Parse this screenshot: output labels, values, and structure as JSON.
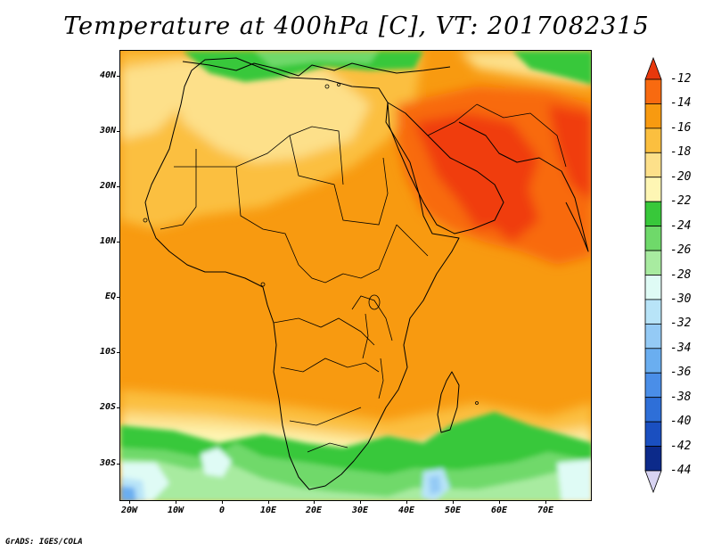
{
  "title": "Temperature at 400hPa [C], VT: 2017082315",
  "footer": "GrADS: IGES/COLA",
  "axes": {
    "lat_labels": [
      "40N",
      "30N",
      "20N",
      "10N",
      "EQ",
      "10S",
      "20S",
      "30S"
    ],
    "lat_values": [
      40,
      30,
      20,
      10,
      0,
      -10,
      -20,
      -30
    ],
    "lon_labels": [
      "20W",
      "10W",
      "0",
      "10E",
      "20E",
      "30E",
      "40E",
      "50E",
      "60E",
      "70E"
    ],
    "lon_values": [
      -20,
      -10,
      0,
      10,
      20,
      30,
      40,
      50,
      60,
      70
    ],
    "lon_range": [
      -22,
      80
    ],
    "lat_range": [
      -37,
      45
    ]
  },
  "colorbar": {
    "labels": [
      "-12",
      "-14",
      "-16",
      "-18",
      "-20",
      "-22",
      "-24",
      "-26",
      "-28",
      "-30",
      "-32",
      "-34",
      "-36",
      "-38",
      "-40",
      "-42",
      "-44"
    ],
    "colors": [
      "#f03c10",
      "#f86a10",
      "#f89a10",
      "#fbbf3f",
      "#fde08a",
      "#fef6b4",
      "#38c83a",
      "#6fd96a",
      "#a8ebA0",
      "#dffbf5",
      "#b8e4f8",
      "#94caf5",
      "#6aaef0",
      "#4a8ee8",
      "#2e6fd8",
      "#1a4fc0",
      "#0c2a8a",
      "#0b1c6e"
    ],
    "top_arrow_color": "#e8380c",
    "bottom_arrow_color": "#d8d4f2"
  }
}
